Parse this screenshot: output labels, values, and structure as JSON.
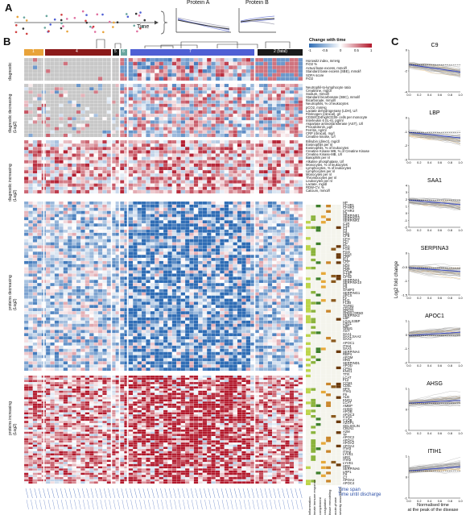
{
  "panels": {
    "a": "A",
    "b": "B",
    "c": "C"
  },
  "panel_a": {
    "time_label": "Time",
    "protein_a": "Protein A",
    "protein_b": "Protein B"
  },
  "legend": {
    "title": "Change with time",
    "ticks": [
      "-1",
      "-0.5",
      "0",
      "0.5",
      "1"
    ],
    "colors": [
      "#2f6db5",
      "#ffffff",
      "#b2182b"
    ]
  },
  "cluster_labels": [
    "1",
    "4",
    "5",
    "6",
    "7",
    "2 (fatal)"
  ],
  "cluster_colors": [
    "#e8a33a",
    "#8b1a1a",
    "#1a1a1a",
    "#6aa7a0",
    "#4f5fd4",
    "#1a1a1a"
  ],
  "row_groups": [
    "diagnostic",
    "diagnostic decreasing\n(Log2)",
    "diagnostic increasing\n(Log2)",
    "proteins decreasing\n(Log2)",
    "proteins increasing\n(Log2)"
  ],
  "diag_labels": [
    "Horowitz index, mmHg",
    "FiO2 %",
    "Actual base excess, mmol/l",
    "Standard base excess (SBE), mmol/l",
    "SOFA score",
    "FiO2"
  ],
  "diag_dec_labels": [
    "Neutrophil-to-lymphocyte ratio",
    "Creatinine, mg/dl",
    "Sodium, mmol/l",
    "Standard bicarbonate (SBC), mmol/l",
    "Bicarbonate, mmol/l",
    "Neutrophils, % of leukocytes",
    "pCO2, mmHg",
    "Lactate dehydrogenase (LDH), U/l",
    "Fibrinogen (clinical), g/l",
    "CD38/CD4highCD38- cells per monocyte",
    "Interleukin 6 (IL-6), pg/ml",
    "Aspartate aminotransferase (AST), U/l",
    "Procalcitonin, µg/l",
    "Ferritin, ng/ml",
    "CRP (clinical), mg/l",
    "Creatine kinase, U/l"
  ],
  "diag_inc_labels": [
    "Bilirubin (direct), mg/dl",
    "Eosinophils per nl",
    "Eosinophils, % of leukocytes",
    "Creatine Kinase MB, % of Creatine Kinase",
    "Creatine Kinase-MB, U/l",
    "Basophils per nl",
    "Alkaline phosphatase, U/l",
    "Monocytes, % of leukocytes",
    "Lymphocytes, % of leukocytes",
    "Lymphocytes per nl",
    "Monocytes per nl",
    "Thrombocytes per nl",
    "Leukocytes per nl",
    "Lactate, mg/dl",
    "RDW-CV, %",
    "Calcium, mmol/l"
  ],
  "prot_dec_labels": [
    "HP",
    "CFHR1",
    "CFHR2",
    "CFHR3",
    "C5",
    "SERPINE1",
    "SERPINA3",
    "SERPINF2",
    "C1R",
    "C1S",
    "C3",
    "C4",
    "C5a",
    "CFB",
    "CFH",
    "CFI",
    "CP",
    "FGA",
    "FGB",
    "FGG",
    "CD14",
    "CRP",
    "IC1",
    "CRP",
    "CR1",
    "CR2",
    "CRP",
    "CTNB",
    "CTSL",
    "CFN2",
    "SERPINA1",
    "SERPINA10",
    "C8",
    "C9",
    "SAMP2",
    "SERPING1",
    "APCS",
    "F2",
    "PLG",
    "F13B",
    "TGFB1",
    "CD163",
    "GPLD1",
    "ORM1;ORM2",
    "SERPINA3",
    "LBP",
    "LGALS3BP",
    "LRG1",
    "LBP",
    "ORM1",
    "AGT",
    "SAA1",
    "SAA1;SAA2",
    "SAA2"
  ],
  "prot_inc_labels": [
    "APOC1",
    "ITIH4",
    "SAA4",
    "SERPINA4",
    "RBP4",
    "APOM",
    "HRG",
    "SERPIND1",
    "APOD",
    "CPN1",
    "KNG1",
    "TTR",
    "LCAT",
    "F12",
    "CCM1",
    "CD5L",
    "HPX",
    "ITIH1",
    "F9",
    "ALB",
    "KNG1",
    "LCAT",
    "AMBP",
    "AHSG",
    "APOB",
    "APOC3",
    "C1QA",
    "C1QB",
    "AZGP1",
    "GELSOLIN",
    "CBLN1",
    "A2M",
    "TF",
    "APOC2",
    "APOA1",
    "APOA2",
    "APOA4",
    "ITIH3",
    "ITIH2",
    "LYVE1",
    "HRG",
    "ITIH2",
    "LYVE1",
    "HRG",
    "SERPINA6",
    "LRP1",
    "C6",
    "C7",
    "APOA4",
    "APOC4"
  ],
  "annotation_columns": [
    "inflammation",
    "innate immune response",
    "complement",
    "coagulation",
    "tissue remodeling",
    "acute-phase",
    "severity association"
  ],
  "bottom_legend": [
    "Time span",
    "Time until discharge"
  ],
  "panel_c": {
    "ylabel": "Log2 fold change",
    "xlabel_line1": "Normalised time",
    "xlabel_line2": "at the peak of the disease",
    "xticks": [
      "0.0",
      "0.2",
      "0.4",
      "0.6",
      "0.8",
      "1.0"
    ],
    "proteins": [
      {
        "name": "C9",
        "yticks": [
          "0",
          "-2",
          "-4"
        ]
      },
      {
        "name": "LBP",
        "yticks": [
          "0",
          "-1",
          "-2",
          "-3"
        ]
      },
      {
        "name": "SAA1",
        "yticks": [
          "4",
          "3",
          "2",
          "1",
          "0",
          "-1",
          "-2"
        ]
      },
      {
        "name": "SERPINA3",
        "yticks": [
          "0",
          "-0.5",
          "-1",
          "-1.5"
        ]
      },
      {
        "name": "APOC1",
        "yticks": [
          "1",
          "0",
          "-1",
          "-2"
        ]
      },
      {
        "name": "AHSG",
        "yticks": [
          "1",
          "0",
          "-1"
        ]
      },
      {
        "name": "ITIH1",
        "yticks": [
          "1",
          "0",
          "-1"
        ]
      }
    ]
  }
}
